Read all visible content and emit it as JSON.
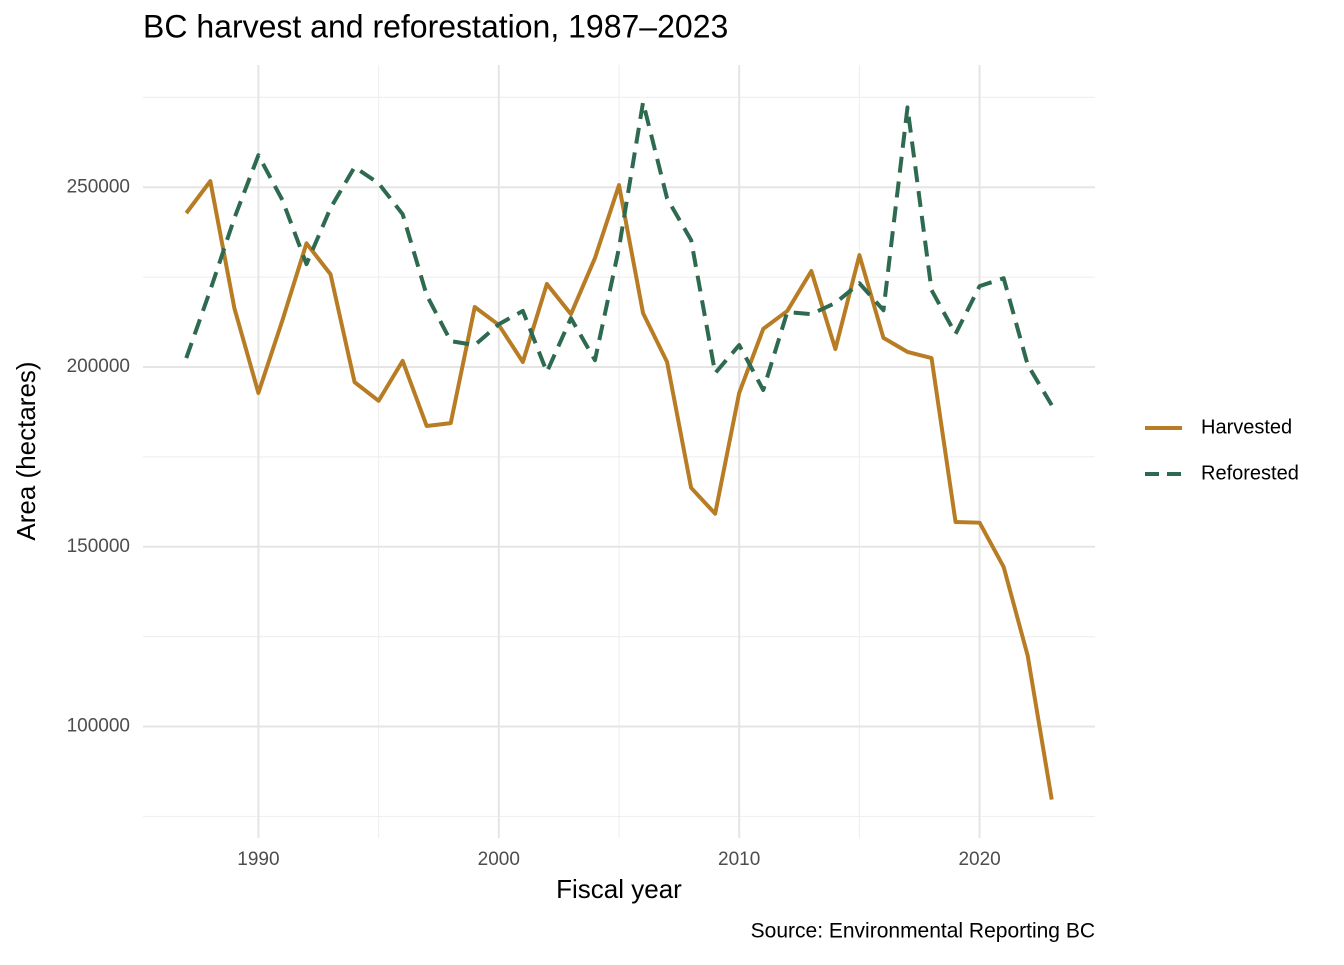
{
  "chart_data": {
    "type": "line",
    "title": "BC harvest and reforestation, 1987–2023",
    "x_label": "Fiscal year",
    "y_label": "Area (hectares)",
    "caption": "Source: Environmental Reporting BC",
    "x": [
      1987,
      1988,
      1989,
      1990,
      1991,
      1992,
      1993,
      1994,
      1995,
      1996,
      1997,
      1998,
      1999,
      2000,
      2001,
      2002,
      2003,
      2004,
      2005,
      2006,
      2007,
      2008,
      2009,
      2010,
      2011,
      2012,
      2013,
      2014,
      2015,
      2016,
      2017,
      2018,
      2019,
      2020,
      2021,
      2022,
      2023
    ],
    "series": [
      {
        "name": "Harvested",
        "color": "#b87d24",
        "dash": "solid",
        "values": [
          242800,
          251700,
          216400,
          192800,
          213000,
          234400,
          225800,
          195800,
          190600,
          201700,
          183600,
          184400,
          216700,
          211700,
          201400,
          223100,
          214700,
          230300,
          250600,
          215000,
          201400,
          166400,
          159200,
          192800,
          210600,
          215600,
          226700,
          205000,
          231100,
          208100,
          204200,
          202500,
          156900,
          156700,
          144400,
          119700,
          79700
        ]
      },
      {
        "name": "Reforested",
        "color": "#2d6a4f",
        "dash": "dashed",
        "values": [
          202500,
          221400,
          241400,
          258900,
          246400,
          228600,
          244200,
          255600,
          251100,
          242500,
          220000,
          207200,
          206100,
          211900,
          215600,
          198600,
          213600,
          201900,
          233100,
          273600,
          246900,
          235300,
          198300,
          206100,
          193600,
          215300,
          214700,
          217800,
          223300,
          215800,
          272200,
          221400,
          209200,
          222500,
          224700,
          200600,
          189400
        ]
      }
    ],
    "xlim": [
      1985.2,
      2024.8
    ],
    "xticks": [
      1990,
      2000,
      2010,
      2020
    ],
    "ylim": [
      69000,
      284000
    ],
    "yticks": [
      100000,
      150000,
      200000,
      250000
    ],
    "grid": true,
    "minor_grid": true,
    "legend": "right"
  }
}
